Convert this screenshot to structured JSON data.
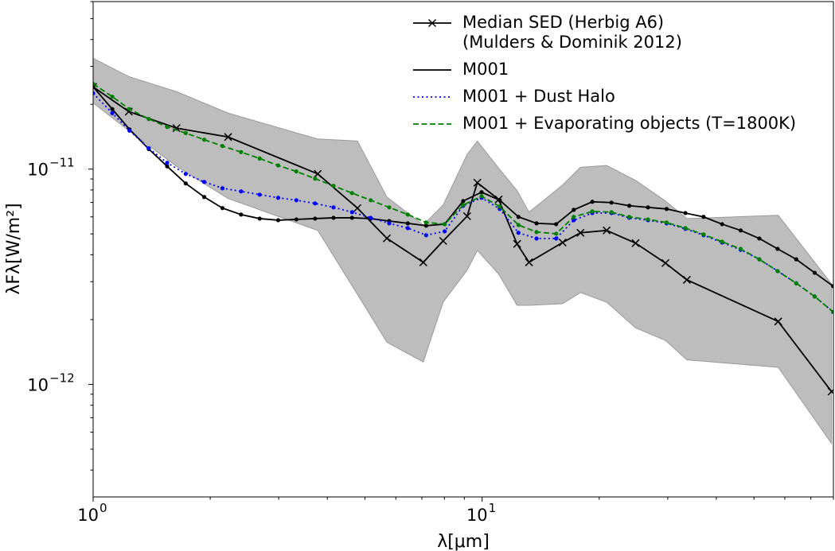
{
  "chart_data": {
    "type": "line",
    "xlabel": "λ[μm]",
    "ylabel": "λFλ[W/m²]",
    "xscale": "log",
    "yscale": "log",
    "xlim": [
      1,
      80
    ],
    "ylim": [
      3e-13,
      6e-11
    ],
    "xticks": [
      {
        "value": 1,
        "label": "10",
        "exponent": "0"
      },
      {
        "value": 10,
        "label": "10",
        "exponent": "1"
      }
    ],
    "yticks": [
      {
        "value": 1e-12,
        "label": "10",
        "exponent": "−12"
      },
      {
        "value": 1e-11,
        "label": "10",
        "exponent": "−11"
      }
    ],
    "xminorticks": [
      2,
      3,
      4,
      5,
      6,
      7,
      8,
      9,
      20,
      30,
      40,
      50,
      60,
      70,
      80
    ],
    "yminorticks": [
      4e-13,
      5e-13,
      6e-13,
      7e-13,
      8e-13,
      9e-13,
      2e-12,
      3e-12,
      4e-12,
      5e-12,
      6e-12,
      7e-12,
      8e-12,
      9e-12,
      2e-11,
      3e-11,
      4e-11,
      5e-11,
      6e-11
    ],
    "legend": "upper right",
    "band": {
      "color": "#bdbdbd",
      "edgecolor": "#9a9a9a",
      "x": [
        1.0,
        1.235,
        1.638,
        2.223,
        3.78,
        4.78,
        5.69,
        7.06,
        7.94,
        9.15,
        9.72,
        11.03,
        12.3,
        13.2,
        16.1,
        17.9,
        20.9,
        24.8,
        29.6,
        33.6,
        57.7,
        79.1
      ],
      "upper": [
        3.27e-11,
        2.69e-11,
        2.29e-11,
        1.82e-11,
        1.38e-11,
        1.35e-11,
        7.42e-12,
        5.5e-12,
        6.81e-12,
        1.17e-11,
        1.35e-11,
        1.01e-11,
        7.94e-12,
        6.31e-12,
        8.43e-12,
        1.02e-11,
        1.04e-11,
        8.87e-12,
        7.11e-12,
        5.89e-12,
        6.1e-12,
        2.93e-12
      ],
      "lower": [
        2.03e-11,
        1.51e-11,
        1.03e-11,
        7.3e-12,
        5.19e-12,
        2.62e-12,
        1.57e-12,
        1.27e-12,
        2.41e-12,
        3.39e-12,
        4.19e-12,
        3.25e-12,
        2.33e-12,
        2.33e-12,
        2.37e-12,
        2.67e-12,
        2.41e-12,
        1.83e-12,
        1.6e-12,
        1.3e-12,
        1.2e-12,
        5.32e-13
      ]
    },
    "series": [
      {
        "name": "Median SED (Herbig A6)\n(Mulders & Dominik 2012)",
        "color": "#000000",
        "marker": "x",
        "linestyle": "solid",
        "x": [
          1.0,
          1.235,
          1.638,
          2.223,
          3.78,
          4.78,
          5.69,
          7.06,
          7.94,
          9.15,
          9.72,
          11.03,
          12.3,
          13.2,
          16.1,
          17.9,
          20.9,
          24.8,
          29.6,
          33.6,
          57.7,
          79.1
        ],
        "values": [
          2.41e-11,
          1.85e-11,
          1.55e-11,
          1.41e-11,
          9.5e-12,
          6.59e-12,
          4.77e-12,
          3.69e-12,
          4.64e-12,
          6.04e-12,
          8.65e-12,
          7.23e-12,
          4.49e-12,
          3.69e-12,
          4.56e-12,
          5.06e-12,
          5.19e-12,
          4.53e-12,
          3.66e-12,
          3.06e-12,
          1.96e-12,
          9.26e-13
        ]
      },
      {
        "name": "M001",
        "color": "#000000",
        "marker": "o",
        "linestyle": "solid",
        "x": [
          1.0,
          1.12,
          1.24,
          1.39,
          1.55,
          1.73,
          1.93,
          2.15,
          2.4,
          2.68,
          2.99,
          3.33,
          3.72,
          4.15,
          4.63,
          5.17,
          5.77,
          6.44,
          7.18,
          8.01,
          8.94,
          9.97,
          11.1,
          12.4,
          13.8,
          15.5,
          17.2,
          19.2,
          21.5,
          23.9,
          26.7,
          29.8,
          33.3,
          37.1,
          41.4,
          46.2,
          51.6,
          57.5,
          64.2,
          71.6,
          79.9
        ],
        "values": [
          2.41e-11,
          1.9e-11,
          1.53e-11,
          1.24e-11,
          1.03e-11,
          8.58e-12,
          7.42e-12,
          6.59e-12,
          6.15e-12,
          5.89e-12,
          5.79e-12,
          5.84e-12,
          5.89e-12,
          5.94e-12,
          5.94e-12,
          5.89e-12,
          5.74e-12,
          5.6e-12,
          5.46e-12,
          5.55e-12,
          7.11e-12,
          7.81e-12,
          7.17e-12,
          6e-12,
          5.6e-12,
          5.55e-12,
          6.47e-12,
          7.05e-12,
          6.99e-12,
          6.76e-12,
          6.64e-12,
          6.53e-12,
          6.25e-12,
          6e-12,
          5.55e-12,
          5.19e-12,
          4.76e-12,
          4.26e-12,
          3.81e-12,
          3.3e-12,
          2.86e-12
        ]
      },
      {
        "name": "M001 + Dust Halo",
        "color": "#0000ff",
        "marker": "o",
        "linestyle": "dotted",
        "x": [
          1.0,
          1.12,
          1.24,
          1.39,
          1.55,
          1.73,
          1.93,
          2.15,
          2.4,
          2.68,
          2.99,
          3.33,
          3.72,
          4.15,
          4.63,
          5.17,
          5.77,
          6.44,
          7.18,
          8.01,
          8.94,
          9.97,
          11.1,
          12.4,
          13.8,
          15.5,
          17.2,
          19.2,
          21.5,
          23.9,
          26.7,
          29.8,
          33.3,
          37.1,
          41.4,
          46.2,
          51.6,
          57.5,
          64.2,
          71.6,
          79.9
        ],
        "values": [
          2.25e-11,
          1.82e-11,
          1.51e-11,
          1.25e-11,
          1.07e-11,
          9.5e-12,
          8.72e-12,
          8.15e-12,
          7.88e-12,
          7.61e-12,
          7.36e-12,
          7.17e-12,
          6.93e-12,
          6.64e-12,
          6.31e-12,
          5.94e-12,
          5.6e-12,
          5.32e-12,
          4.93e-12,
          5.14e-12,
          6.76e-12,
          7.36e-12,
          6.53e-12,
          5.06e-12,
          4.76e-12,
          4.76e-12,
          5.79e-12,
          6.25e-12,
          6.25e-12,
          5.94e-12,
          5.79e-12,
          5.6e-12,
          5.28e-12,
          4.93e-12,
          4.56e-12,
          4.22e-12,
          3.81e-12,
          3.36e-12,
          2.95e-12,
          2.56e-12,
          2.17e-12
        ]
      },
      {
        "name": "M001 + Evaporating objects (T=1800K)",
        "color": "#008000",
        "marker": "o",
        "linestyle": "dashed",
        "x": [
          1.0,
          1.12,
          1.24,
          1.39,
          1.55,
          1.73,
          1.93,
          2.15,
          2.4,
          2.68,
          2.99,
          3.33,
          3.72,
          4.15,
          4.63,
          5.17,
          5.77,
          6.44,
          7.18,
          8.01,
          8.94,
          9.97,
          11.1,
          12.4,
          13.8,
          15.5,
          17.2,
          19.2,
          21.5,
          23.9,
          26.7,
          29.8,
          33.3,
          37.1,
          41.4,
          46.2,
          51.6,
          57.5,
          64.2,
          71.6,
          79.9
        ],
        "values": [
          2.49e-11,
          2.17e-11,
          1.9e-11,
          1.71e-11,
          1.57e-11,
          1.47e-11,
          1.37e-11,
          1.28e-11,
          1.2e-11,
          1.12e-11,
          1.04e-11,
          9.75e-12,
          9.03e-12,
          8.36e-12,
          7.74e-12,
          7.17e-12,
          6.64e-12,
          6.15e-12,
          5.65e-12,
          5.55e-12,
          6.81e-12,
          7.48e-12,
          6.7e-12,
          5.5e-12,
          5.1e-12,
          5.01e-12,
          6e-12,
          6.36e-12,
          6.31e-12,
          6e-12,
          5.84e-12,
          5.65e-12,
          5.32e-12,
          4.97e-12,
          4.6e-12,
          4.26e-12,
          3.81e-12,
          3.36e-12,
          2.95e-12,
          2.56e-12,
          2.17e-12
        ]
      }
    ]
  }
}
